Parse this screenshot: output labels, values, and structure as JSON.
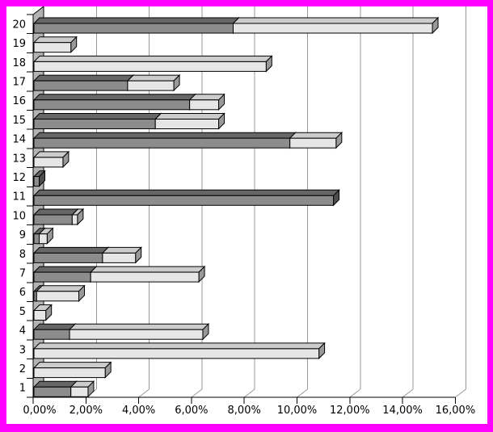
{
  "frame": {
    "border_color": "#FF00FF",
    "background_color": "#FFFFFF"
  },
  "chart_data": {
    "type": "bar",
    "orientation": "horizontal",
    "style": "3d-stacked",
    "title": "",
    "xlabel": "",
    "ylabel": "",
    "categories": [
      "1",
      "2",
      "3",
      "4",
      "5",
      "6",
      "7",
      "8",
      "9",
      "10",
      "11",
      "12",
      "13",
      "14",
      "15",
      "16",
      "17",
      "18",
      "19",
      "20"
    ],
    "category_axis_order_top_to_bottom": [
      "20",
      "19",
      "18",
      "17",
      "16",
      "15",
      "14",
      "13",
      "12",
      "11",
      "10",
      "9",
      "8",
      "7",
      "6",
      "5",
      "4",
      "3",
      "2",
      "1"
    ],
    "series": [
      {
        "name": "series-dark",
        "front_color": "#8C8C8C",
        "top_color": "#666666",
        "side_color": "#4D4D4D",
        "values": [
          1.4,
          0,
          0,
          1.35,
          0,
          0.1,
          2.15,
          2.6,
          0.2,
          1.45,
          11.35,
          0.2,
          0,
          9.7,
          4.6,
          5.9,
          3.55,
          0,
          0,
          7.55
        ]
      },
      {
        "name": "series-light",
        "front_color": "#E6E6E6",
        "top_color": "#CCCCCC",
        "side_color": "#999999",
        "values": [
          0.65,
          2.7,
          10.8,
          5.05,
          0.45,
          1.6,
          4.1,
          1.25,
          0.3,
          0.2,
          0,
          0,
          1.1,
          1.75,
          2.4,
          1.1,
          1.75,
          8.8,
          1.4,
          7.55
        ]
      }
    ],
    "x_axis": {
      "min": 0,
      "max": 16,
      "step": 2,
      "tick_labels": [
        "0,00%",
        "2,00%",
        "4,00%",
        "6,00%",
        "8,00%",
        "10,00%",
        "12,00%",
        "14,00%",
        "16,00%"
      ],
      "format": "percent, comma decimal separator"
    },
    "y_axis": {
      "tick_labels": [
        "20",
        "19",
        "18",
        "17",
        "16",
        "15",
        "14",
        "13",
        "12",
        "11",
        "10",
        "9",
        "8",
        "7",
        "6",
        "5",
        "4",
        "3",
        "2",
        "1"
      ]
    },
    "legend": "none",
    "grid": "vertical gridlines every 2%",
    "gridline_color": "#999999",
    "wall_color": "#B3B3B3",
    "axis_color": "#000000",
    "label_color": "#000000",
    "plot_background": "#FFFFFF"
  }
}
